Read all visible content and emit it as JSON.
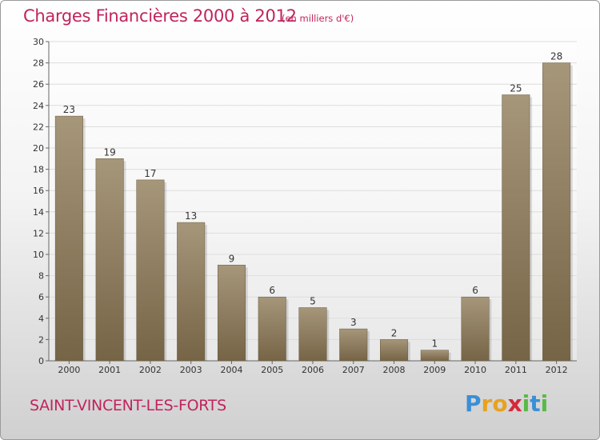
{
  "title": "Charges Financières 2000 à 2012",
  "subtitle": "(en milliers d'€)",
  "commune": "SAINT-VINCENT-LES-FORTS",
  "brand": {
    "letters": [
      "P",
      "r",
      "o",
      "x",
      "i",
      "t",
      "i"
    ],
    "colors": [
      "#3a8fd6",
      "#e8a21f",
      "#e8a21f",
      "#d6283c",
      "#59b947",
      "#3a8fd6",
      "#59b947"
    ]
  },
  "colors": {
    "title": "#c0245c",
    "bar_light": "#a6967a",
    "bar_dark": "#766446",
    "grid": "#dddddd"
  },
  "chart_data": {
    "type": "bar",
    "title": "Charges Financières 2000 à 2012",
    "subtitle": "(en milliers d'€)",
    "categories": [
      "2000",
      "2001",
      "2002",
      "2003",
      "2004",
      "2005",
      "2006",
      "2007",
      "2008",
      "2009",
      "2010",
      "2011",
      "2012"
    ],
    "values": [
      23,
      19,
      17,
      13,
      9,
      6,
      5,
      3,
      2,
      1,
      6,
      25,
      28
    ],
    "ylim": [
      0,
      30
    ],
    "yticks": [
      0,
      2,
      4,
      6,
      8,
      10,
      12,
      14,
      16,
      18,
      20,
      22,
      24,
      26,
      28,
      30
    ],
    "grid": true,
    "data_labels": true
  }
}
